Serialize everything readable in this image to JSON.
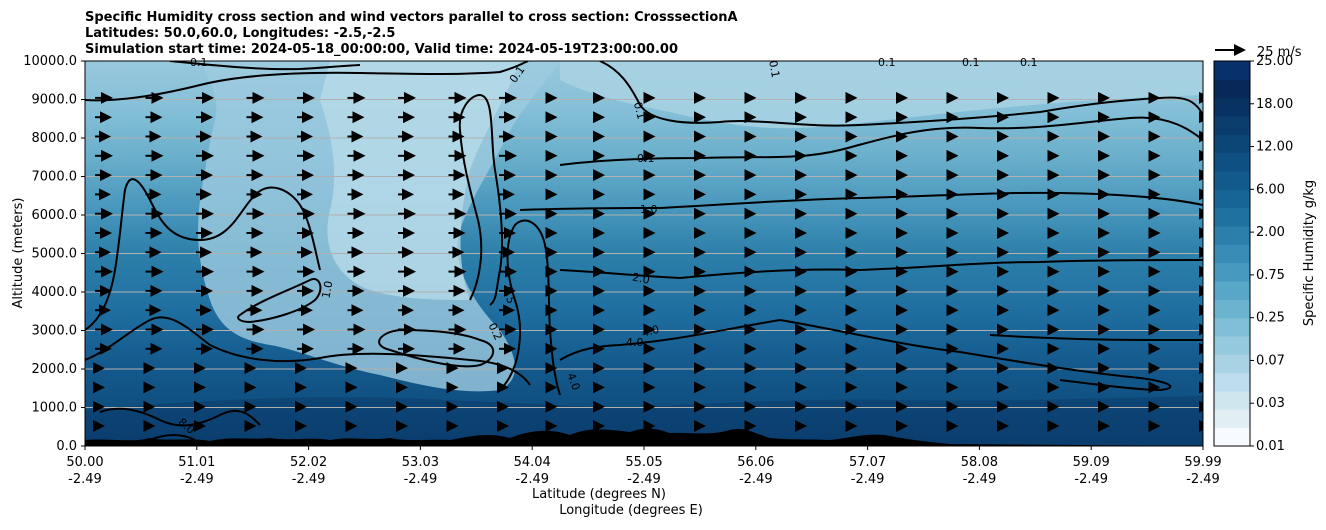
{
  "chart_data": {
    "type": "heatmap",
    "title_lines": [
      "Specific Humidity cross section and wind vectors parallel to cross section: CrosssectionA",
      "Latitudes: 50.0,60.0, Longitudes: -2.5,-2.5",
      "Simulation start time: 2024-05-18_00:00:00, Valid time: 2024-05-19T23:00:00.00"
    ],
    "ylabel": "Altitude (meters)",
    "xlabel_lat": "Latitude (degrees N)",
    "xlabel_lon": "Longitude (degrees E)",
    "ylim": [
      0,
      10000
    ],
    "yticks": [
      "0.0",
      "1000.0",
      "2000.0",
      "3000.0",
      "4000.0",
      "5000.0",
      "6000.0",
      "7000.0",
      "8000.0",
      "9000.0",
      "10000.0"
    ],
    "xlim": [
      50.0,
      59.99
    ],
    "xticks_lat": [
      "50.00",
      "51.01",
      "52.02",
      "53.03",
      "54.04",
      "55.05",
      "56.06",
      "57.07",
      "58.08",
      "59.09",
      "59.99"
    ],
    "xticks_lon": [
      "-2.49",
      "-2.49",
      "-2.49",
      "-2.49",
      "-2.49",
      "-2.49",
      "-2.49",
      "-2.49",
      "-2.49",
      "-2.49",
      "-2.49"
    ],
    "grid": "horizontal",
    "colorbar": {
      "label": "Specific Humidity g/kg",
      "ticks": [
        "0.01",
        "0.03",
        "0.07",
        "0.25",
        "0.75",
        "2.00",
        "6.00",
        "12.00",
        "18.00",
        "25.00"
      ],
      "colors": [
        "#f7fbff",
        "#e1eff4",
        "#cfe6ee",
        "#bddced",
        "#a9d3e5",
        "#95c9dd",
        "#80bfd6",
        "#6bb3cf",
        "#58a6c8",
        "#4799c0",
        "#388cb6",
        "#2b7faa",
        "#1f72a0",
        "#176596",
        "#125a8c",
        "#0f5082",
        "#0c4677",
        "#0a3c6c",
        "#083261",
        "#072858",
        "#08306b"
      ]
    },
    "quiver_key": "25 m/s",
    "contour_labels": [
      "0.1",
      "0.1",
      "0.1",
      "0.1",
      "0.1",
      "0.1",
      "0.1",
      "1.0",
      "1.0",
      "2.0",
      "0.5",
      "0.2",
      "4.0",
      "4.0",
      "4.0",
      "8.0"
    ],
    "colors": {
      "terrain": "#000000",
      "contour": "#000000",
      "grid": "#b0b0b0"
    }
  }
}
